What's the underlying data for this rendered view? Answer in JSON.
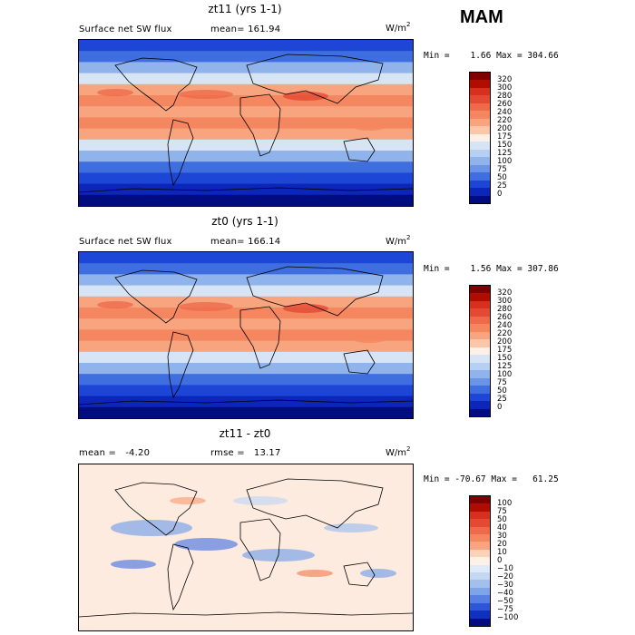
{
  "season": "MAM",
  "panels": [
    {
      "title": "zt11 (yrs 1-1)",
      "left_label": "Surface net SW flux",
      "right_label": "mean= 161.94",
      "units": "W/m",
      "units_exp": "2",
      "minmax": "Min =    1.66 Max = 304.66",
      "colorbar_labels": [
        "320",
        "300",
        "280",
        "260",
        "240",
        "220",
        "200",
        "175",
        "150",
        "125",
        "100",
        "75",
        "50",
        "25",
        "0"
      ],
      "colors": [
        "#7f0000",
        "#b00d00",
        "#d7301f",
        "#e34a33",
        "#ee6a4b",
        "#f4875f",
        "#f8a47e",
        "#fcc7a8",
        "#fdf0e6",
        "#d6e4f5",
        "#b7cff0",
        "#8fb3ea",
        "#6a94e6",
        "#3f6ee0",
        "#1d46d6",
        "#0b26b8",
        "#000c80"
      ]
    },
    {
      "title": "zt0 (yrs 1-1)",
      "left_label": "Surface net SW flux",
      "right_label": "mean= 166.14",
      "units": "W/m",
      "units_exp": "2",
      "minmax": "Min =    1.56 Max = 307.86",
      "colorbar_labels": [
        "320",
        "300",
        "280",
        "260",
        "240",
        "220",
        "200",
        "175",
        "150",
        "125",
        "100",
        "75",
        "50",
        "25",
        "0"
      ],
      "colors": [
        "#7f0000",
        "#b00d00",
        "#d7301f",
        "#e34a33",
        "#ee6a4b",
        "#f4875f",
        "#f8a47e",
        "#fcc7a8",
        "#fdf0e6",
        "#d6e4f5",
        "#b7cff0",
        "#8fb3ea",
        "#6a94e6",
        "#3f6ee0",
        "#1d46d6",
        "#0b26b8",
        "#000c80"
      ]
    },
    {
      "title": "zt11 - zt0",
      "left_label": "mean =   -4.20",
      "right_label": "rmse =   13.17",
      "units": "W/m",
      "units_exp": "2",
      "minmax": "Min = -70.67 Max =   61.25",
      "colorbar_labels": [
        "100",
        "75",
        "50",
        "40",
        "30",
        "20",
        "10",
        "0",
        "−10",
        "−20",
        "−30",
        "−40",
        "−50",
        "−75",
        "−100"
      ],
      "colors": [
        "#7f0000",
        "#b00d00",
        "#d7301f",
        "#e34a33",
        "#ee6a4b",
        "#f4875f",
        "#f8a47e",
        "#fcd2b8",
        "#fdf0e6",
        "#dfeaf8",
        "#c4d8f2",
        "#a3c0ed",
        "#7ea5e8",
        "#587fe2",
        "#2f55d8",
        "#1030c0",
        "#000c80"
      ]
    }
  ],
  "chart_data": [
    {
      "type": "heatmap",
      "title": "zt11 (yrs 1-1)",
      "variable": "Surface net SW flux",
      "units": "W/m2",
      "mean": 161.94,
      "min": 1.66,
      "max": 304.66,
      "levels": [
        0,
        25,
        50,
        75,
        100,
        125,
        150,
        175,
        200,
        220,
        240,
        260,
        280,
        300,
        320
      ],
      "latitude_band_means": {
        "lat": [
          80,
          60,
          40,
          20,
          0,
          -20,
          -40,
          -60,
          -80
        ],
        "value": [
          45,
          90,
          180,
          260,
          230,
          260,
          170,
          70,
          15
        ]
      }
    },
    {
      "type": "heatmap",
      "title": "zt0 (yrs 1-1)",
      "variable": "Surface net SW flux",
      "units": "W/m2",
      "mean": 166.14,
      "min": 1.56,
      "max": 307.86,
      "levels": [
        0,
        25,
        50,
        75,
        100,
        125,
        150,
        175,
        200,
        220,
        240,
        260,
        280,
        300,
        320
      ],
      "latitude_band_means": {
        "lat": [
          80,
          60,
          40,
          20,
          0,
          -20,
          -40,
          -60,
          -80
        ],
        "value": [
          45,
          95,
          185,
          270,
          240,
          270,
          175,
          70,
          15
        ]
      }
    },
    {
      "type": "heatmap",
      "title": "zt11 - zt0",
      "units": "W/m2",
      "mean": -4.2,
      "rmse": 13.17,
      "min": -70.67,
      "max": 61.25,
      "levels": [
        -100,
        -75,
        -50,
        -40,
        -30,
        -20,
        -10,
        0,
        10,
        20,
        30,
        40,
        50,
        75,
        100
      ]
    }
  ]
}
